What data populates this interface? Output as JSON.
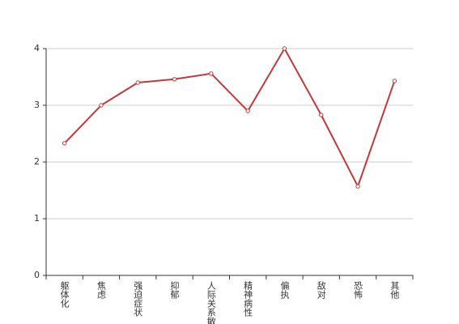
{
  "chart_data": {
    "type": "line",
    "categories": [
      "躯体化",
      "焦虑",
      "强迫症状",
      "抑郁",
      "人际关系敏感",
      "精神病性",
      "偏执",
      "敌对",
      "恐怖",
      "其他"
    ],
    "series": [
      {
        "color": "#c0393b",
        "values": [
          2.33,
          3.0,
          3.4,
          3.46,
          3.56,
          2.9,
          4.0,
          2.83,
          1.57,
          3.43
        ]
      }
    ],
    "ylim": [
      0,
      4
    ],
    "yticks": [
      0,
      1,
      2,
      3,
      4
    ],
    "grid": true
  }
}
